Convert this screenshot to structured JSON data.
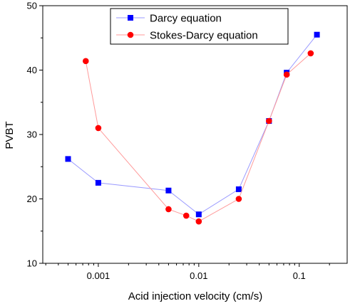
{
  "chart_data": {
    "type": "scatter",
    "xlabel": "Acid injection velocity (cm/s)",
    "ylabel": "PVBT",
    "x_scale": "log",
    "xlim": [
      0.00028,
      0.3
    ],
    "ylim": [
      10,
      50
    ],
    "x_ticks": [
      0.001,
      0.01,
      0.1
    ],
    "x_tick_labels": [
      "0.001",
      "0.01",
      "0.1"
    ],
    "y_ticks": [
      10,
      20,
      30,
      40,
      50
    ],
    "y_tick_labels": [
      "10",
      "20",
      "30",
      "40",
      "50"
    ],
    "grid": false,
    "legend_position": "top-right",
    "series": [
      {
        "name": "Darcy equation",
        "marker": "square",
        "color": "#0000ff",
        "line_color": "#9a9aff",
        "x": [
          0.0005,
          0.001,
          0.005,
          0.01,
          0.025,
          0.05,
          0.075,
          0.15
        ],
        "y": [
          26.2,
          22.5,
          21.3,
          17.6,
          21.5,
          32.1,
          39.6,
          45.5
        ]
      },
      {
        "name": "Stokes-Darcy equation",
        "marker": "circle",
        "color": "#ff0000",
        "line_color": "#ff9a9a",
        "x": [
          0.00075,
          0.001,
          0.005,
          0.0075,
          0.01,
          0.025,
          0.05,
          0.075,
          0.13
        ],
        "y": [
          41.4,
          31.0,
          18.4,
          17.4,
          16.5,
          20.0,
          32.1,
          39.3,
          42.6
        ]
      }
    ]
  }
}
